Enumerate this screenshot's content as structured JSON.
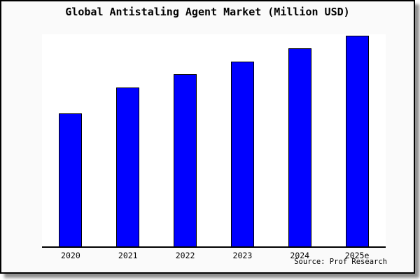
{
  "title": "Global Antistaling Agent Market (Million USD)",
  "source_credit": "Source: Prof Research",
  "colors": {
    "bar_fill": "#0000FF",
    "bar_border": "#000000",
    "figure_background": "#FAFAFA",
    "plot_background": "#FFFFFF",
    "axis_line": "#000000",
    "frame_border": "#000000",
    "shadow": "#8F8F8F"
  },
  "chart_data": {
    "type": "bar",
    "title": "Global Antistaling Agent Market (Million USD)",
    "categories": [
      "2020",
      "2021",
      "2022",
      "2023",
      "2024",
      "2025e"
    ],
    "values": [
      63.1,
      75.3,
      81.7,
      87.9,
      93.9,
      100
    ],
    "value_basis": "estimated relative index (2025e = 100); no y-axis tick labels shown in figure",
    "xlabel": "",
    "ylabel": "",
    "ylim": [
      0,
      100.7
    ],
    "grid": false,
    "legend": "none",
    "y_axis_visible": false,
    "annotations": [
      "Source: Prof Research"
    ]
  }
}
